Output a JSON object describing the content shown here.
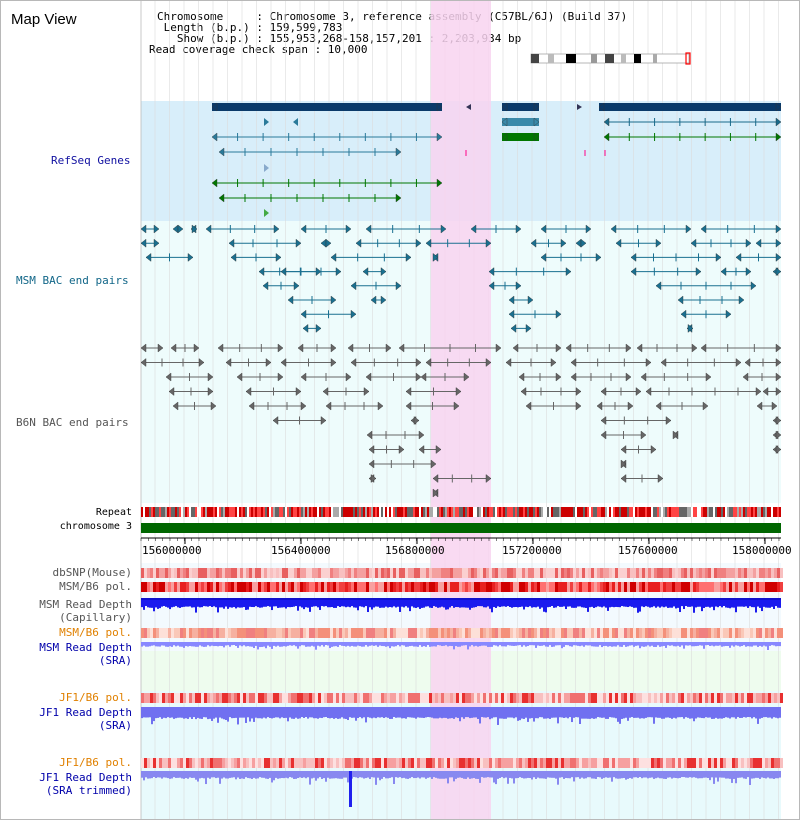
{
  "view": {
    "title": "Map View"
  },
  "info": {
    "chromosome_label": "Chromosome     : Chromosome 3, reference assembly (C57BL/6J) (Build 37)",
    "length_label": " Length (b.p.) : 159,599,783",
    "show_label": "   Show (b.p.) : 155,953,268-158,157,201 : 2,203,934 bp",
    "coverage_label": "Read coverage check span : 10,000"
  },
  "tracks": {
    "refseq": "RefSeq Genes",
    "msm_bac": "MSM BAC end pairs",
    "b6n_bac": "B6N BAC end pairs",
    "repeat": "Repeat",
    "chromosome": "chromosome 3"
  },
  "axis": {
    "ticks": [
      "156000000",
      "156400000",
      "156800000",
      "157200000",
      "157600000",
      "158000000"
    ]
  },
  "lower_tracks": {
    "dbsnp": "dbSNP(Mouse)",
    "msm_b6_pol_1": "MSM/B6 pol.",
    "msm_depth_cap_1": "MSM Read Depth",
    "msm_depth_cap_2": "(Capillary)",
    "msm_b6_pol_2": "MSM/B6 pol.",
    "msm_depth_sra_1": "MSM Read Depth",
    "msm_depth_sra_2": "(SRA)",
    "jf1_b6_pol_1": "JF1/B6 pol.",
    "jf1_depth_sra_1": "JF1 Read Depth",
    "jf1_depth_sra_2": "(SRA)",
    "jf1_b6_pol_2": "JF1/B6 pol.",
    "jf1_depth_trim_1": "JF1 Read Depth",
    "jf1_depth_trim_2": "(SRA trimmed)"
  },
  "colors": {
    "refseq_bg": "#d8eefa",
    "bac_bg": "#e8fbfb",
    "highlight": "#f8d4f0",
    "refseq_label": "#1010a0",
    "msm_label": "#116688",
    "b6n_label": "#555555",
    "orange_label": "#e08000",
    "blue_label": "#0000aa",
    "depth_blue": "#2020ff",
    "chromosome_green": "#006600"
  }
}
